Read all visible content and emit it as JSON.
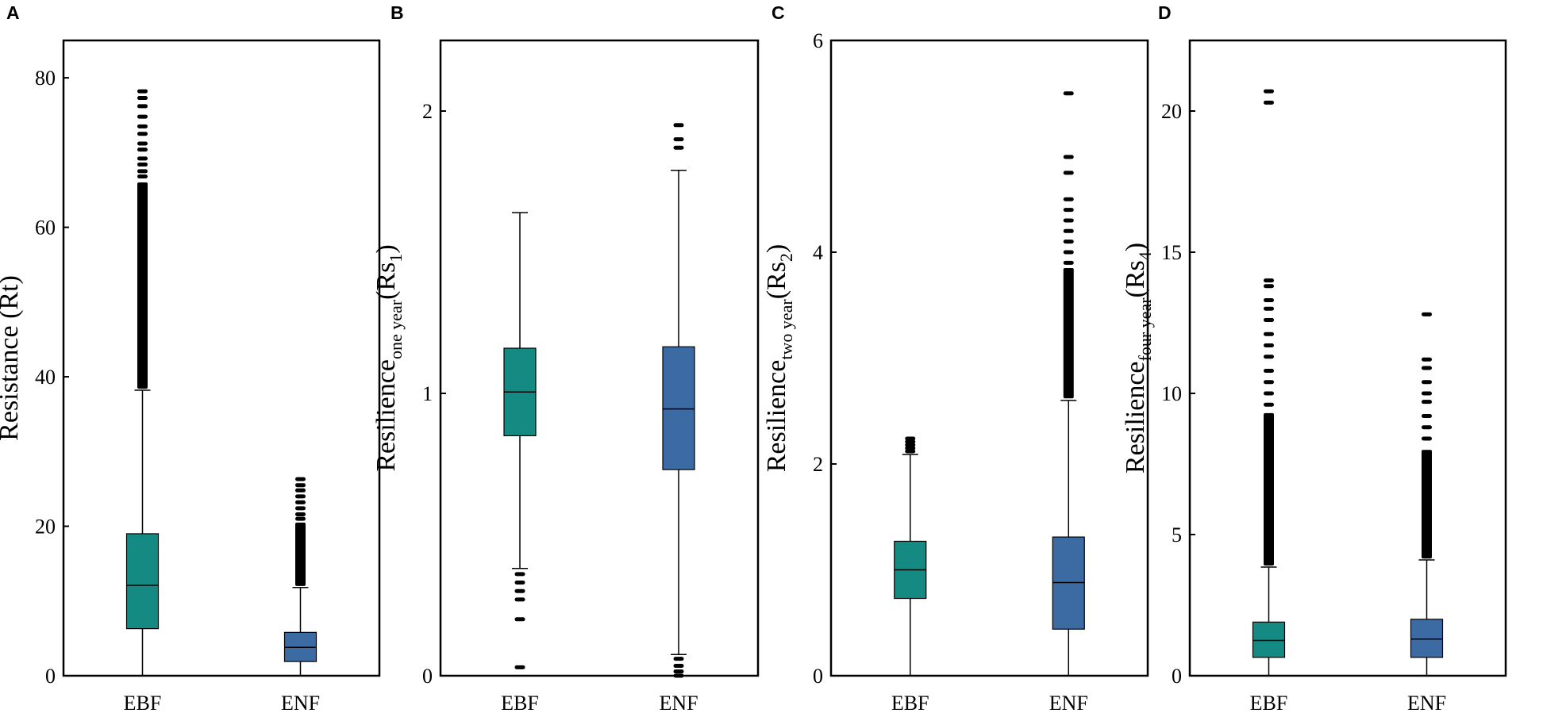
{
  "chart_data": [
    {
      "type": "boxplot",
      "panel": "A",
      "ylabel": {
        "main": "Resistance (Rt)",
        "sub": ""
      },
      "ylim": [
        0,
        85
      ],
      "yticks": [
        0,
        20,
        40,
        60,
        80
      ],
      "categories": [
        "EBF",
        "ENF"
      ],
      "colors": [
        "#148a83",
        "#3c6aa3"
      ],
      "boxes": [
        {
          "name": "EBF",
          "whisker_low": 0,
          "q1": 6.3,
          "median": 12.1,
          "q3": 19.0,
          "whisker_high": 38.2,
          "outliers": {
            "dense_ranges": [
              [
                38.4,
                66.0
              ]
            ],
            "points": [
              66.8,
              67.5,
              68.4,
              69.2,
              70.4,
              71.2,
              72.5,
              73.5,
              74.8,
              76.2,
              77.3,
              78.2
            ]
          }
        },
        {
          "name": "ENF",
          "whisker_low": 0,
          "q1": 1.9,
          "median": 3.8,
          "q3": 5.8,
          "whisker_high": 11.8,
          "outliers": {
            "dense_ranges": [
              [
                12.0,
                20.5
              ]
            ],
            "points": [
              21.0,
              21.6,
              22.4,
              23.2,
              24.0,
              24.8,
              25.5,
              26.3
            ]
          }
        }
      ]
    },
    {
      "type": "boxplot",
      "panel": "B",
      "ylabel": {
        "main": "Resilience",
        "sub": "one year",
        "paren": "(Rs",
        "paren_sub": "1",
        "close": ")"
      },
      "ylim": [
        0,
        2.25
      ],
      "yticks": [
        0,
        1,
        2
      ],
      "categories": [
        "EBF",
        "ENF"
      ],
      "colors": [
        "#148a83",
        "#3c6aa3"
      ],
      "boxes": [
        {
          "name": "EBF",
          "whisker_low": 0.38,
          "q1": 0.85,
          "median": 1.005,
          "q3": 1.16,
          "whisker_high": 1.64,
          "outliers": {
            "dense_ranges": [],
            "points": [
              0.03,
              0.2,
              0.27,
              0.3,
              0.33,
              0.36
            ]
          }
        },
        {
          "name": "ENF",
          "whisker_low": 0.075,
          "q1": 0.73,
          "median": 0.945,
          "q3": 1.165,
          "whisker_high": 1.79,
          "outliers": {
            "dense_ranges": [],
            "points": [
              0.0,
              0.015,
              0.035,
              0.06,
              1.87,
              1.9,
              1.95
            ]
          }
        }
      ]
    },
    {
      "type": "boxplot",
      "panel": "C",
      "ylabel": {
        "main": "Resilience",
        "sub": "two year",
        "paren": "(Rs",
        "paren_sub": "2",
        "close": ")"
      },
      "ylim": [
        0,
        6
      ],
      "yticks": [
        0,
        2,
        4,
        6
      ],
      "categories": [
        "EBF",
        "ENF"
      ],
      "colors": [
        "#148a83",
        "#3c6aa3"
      ],
      "boxes": [
        {
          "name": "EBF",
          "whisker_low": 0,
          "q1": 0.73,
          "median": 1.0,
          "q3": 1.27,
          "whisker_high": 2.09,
          "outliers": {
            "dense_ranges": [],
            "points": [
              2.12,
              2.15,
              2.18,
              2.21,
              2.24
            ]
          }
        },
        {
          "name": "ENF",
          "whisker_low": 0,
          "q1": 0.44,
          "median": 0.88,
          "q3": 1.31,
          "whisker_high": 2.6,
          "outliers": {
            "dense_ranges": [
              [
                2.62,
                3.85
              ]
            ],
            "points": [
              3.9,
              4.0,
              4.1,
              4.2,
              4.3,
              4.4,
              4.5,
              4.75,
              4.9,
              5.5
            ]
          }
        }
      ]
    },
    {
      "type": "boxplot",
      "panel": "D",
      "ylabel": {
        "main": "Resilience",
        "sub": "four year",
        "paren": "(Rs",
        "paren_sub": "4",
        "close": ")"
      },
      "ylim": [
        0,
        22.5
      ],
      "yticks": [
        0,
        5,
        10,
        15,
        20
      ],
      "categories": [
        "EBF",
        "ENF"
      ],
      "colors": [
        "#148a83",
        "#3c6aa3"
      ],
      "boxes": [
        {
          "name": "EBF",
          "whisker_low": 0,
          "q1": 0.65,
          "median": 1.25,
          "q3": 1.9,
          "whisker_high": 3.85,
          "outliers": {
            "dense_ranges": [
              [
                3.9,
                9.3
              ]
            ],
            "points": [
              9.6,
              10.0,
              10.4,
              10.8,
              11.3,
              11.7,
              12.1,
              12.6,
              13.0,
              13.3,
              13.8,
              14.0,
              20.3,
              20.7
            ]
          }
        },
        {
          "name": "ENF",
          "whisker_low": 0,
          "q1": 0.65,
          "median": 1.3,
          "q3": 2.0,
          "whisker_high": 4.1,
          "outliers": {
            "dense_ranges": [
              [
                4.15,
                8.0
              ]
            ],
            "points": [
              8.4,
              8.8,
              9.2,
              9.7,
              10.0,
              10.4,
              10.9,
              11.2,
              12.8
            ]
          }
        }
      ]
    }
  ]
}
